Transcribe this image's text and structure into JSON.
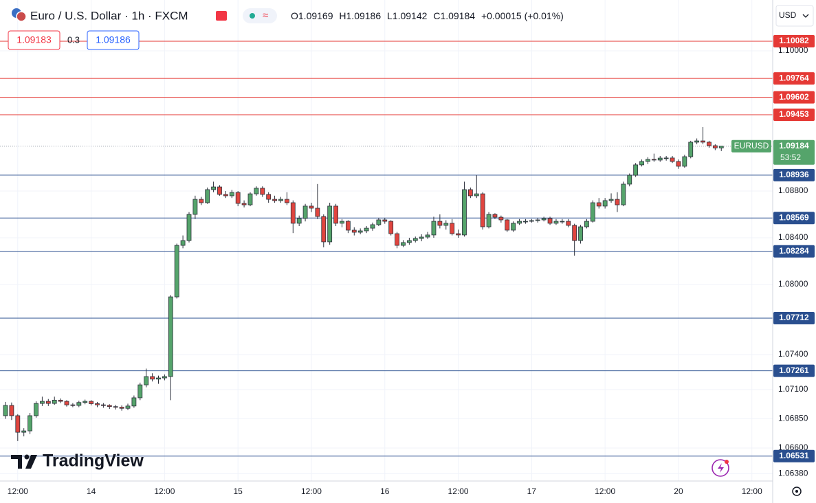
{
  "header": {
    "symbol": "Euro / U.S. Dollar · 1h · FXCM",
    "ohlc_labels": [
      "O",
      "H",
      "L",
      "C"
    ],
    "change": "+0.00015 (+0.01%)",
    "sell": 1.09183,
    "spread": 0.3,
    "buy": 1.09186,
    "currency": "USD",
    "brand": "TradingView"
  },
  "chart_data": {
    "type": "candlestick",
    "series_name": "EURUSD",
    "countdown": "53:52",
    "up_color": "#55a46b",
    "down_color": "#e0453f",
    "ylim": [
      1.06318,
      1.10435
    ],
    "xlim": [
      -0.9,
      125.4
    ],
    "grid": true,
    "yticks": [
      {
        "value": 1.1,
        "label": "1.10000"
      },
      {
        "value": 1.088,
        "label": "1.08800"
      },
      {
        "value": 1.084,
        "label": "1.08400"
      },
      {
        "value": 1.08,
        "label": "1.08000"
      },
      {
        "value": 1.074,
        "label": "1.07400"
      },
      {
        "value": 1.071,
        "label": "1.07100"
      },
      {
        "value": 1.0685,
        "label": "1.06850"
      },
      {
        "value": 1.066,
        "label": "1.06600"
      },
      {
        "value": 1.0638,
        "label": "1.06380"
      }
    ],
    "xticks": [
      {
        "value": 2,
        "label": "12:00"
      },
      14,
      {
        "value": 26,
        "label": "12:00"
      },
      {
        "value": 38,
        "label": "15"
      },
      {
        "value": 50,
        "label": "12:00"
      },
      {
        "value": 62,
        "label": "16"
      },
      {
        "value": 74,
        "label": "12:00"
      },
      {
        "value": 86,
        "label": "17"
      },
      {
        "value": 98,
        "label": "12:00"
      },
      {
        "value": 110,
        "label": "20"
      },
      {
        "value": 122,
        "label": "12:00"
      }
    ],
    "levels": [
      {
        "value": 1.10082,
        "color": "#e53935"
      },
      {
        "value": 1.09764,
        "color": "#e53935"
      },
      {
        "value": 1.09602,
        "color": "#e53935"
      },
      {
        "value": 1.09453,
        "color": "#e53935"
      },
      {
        "value": 1.08936,
        "color": "#2a4f8f"
      },
      {
        "value": 1.08569,
        "color": "#2a4f8f"
      },
      {
        "value": 1.08284,
        "color": "#2a4f8f"
      },
      {
        "value": 1.07712,
        "color": "#2a4f8f"
      },
      {
        "value": 1.07261,
        "color": "#2a4f8f"
      },
      {
        "value": 1.06531,
        "color": "#2a4f8f"
      }
    ],
    "ohlc": [
      [
        1.06877,
        1.06995,
        1.0685,
        1.06965
      ],
      [
        1.06965,
        1.0699,
        1.0684,
        1.06877
      ],
      [
        1.06877,
        1.0689,
        1.0666,
        1.06735
      ],
      [
        1.06735,
        1.0677,
        1.067,
        1.06747
      ],
      [
        1.06747,
        1.069,
        1.0672,
        1.06877
      ],
      [
        1.06877,
        1.07,
        1.0686,
        1.06982
      ],
      [
        1.06982,
        1.0704,
        1.0696,
        1.07
      ],
      [
        1.07,
        1.0702,
        1.0696,
        1.06982
      ],
      [
        1.06982,
        1.0704,
        1.0697,
        1.0701
      ],
      [
        1.0701,
        1.07025,
        1.06985,
        1.07
      ],
      [
        1.07,
        1.0701,
        1.06955,
        1.0697
      ],
      [
        1.0697,
        1.06985,
        1.0695,
        1.06965
      ],
      [
        1.06965,
        1.07005,
        1.0695,
        1.0699
      ],
      [
        1.0699,
        1.07015,
        1.06975,
        1.07
      ],
      [
        1.07,
        1.0701,
        1.06965,
        1.0698
      ],
      [
        1.0698,
        1.06995,
        1.0695,
        1.0697
      ],
      [
        1.0697,
        1.06985,
        1.06945,
        1.06965
      ],
      [
        1.06965,
        1.06975,
        1.06935,
        1.06955
      ],
      [
        1.06955,
        1.0697,
        1.0693,
        1.0695
      ],
      [
        1.0695,
        1.06965,
        1.0692,
        1.0694
      ],
      [
        1.0694,
        1.0698,
        1.06925,
        1.0696
      ],
      [
        1.0696,
        1.0705,
        1.06945,
        1.0703
      ],
      [
        1.0703,
        1.0716,
        1.0701,
        1.07141
      ],
      [
        1.07141,
        1.0728,
        1.0712,
        1.07212
      ],
      [
        1.07212,
        1.0724,
        1.0717,
        1.0719
      ],
      [
        1.0719,
        1.0722,
        1.0715,
        1.072
      ],
      [
        1.072,
        1.0723,
        1.0718,
        1.07212
      ],
      [
        1.07212,
        1.0791,
        1.0701,
        1.07894
      ],
      [
        1.07894,
        1.0835,
        1.0788,
        1.08335
      ],
      [
        1.08335,
        1.0842,
        1.0831,
        1.08376
      ],
      [
        1.08376,
        1.0862,
        1.0836,
        1.086
      ],
      [
        1.086,
        1.0876,
        1.0856,
        1.08729
      ],
      [
        1.08729,
        1.0875,
        1.0868,
        1.087
      ],
      [
        1.087,
        1.0883,
        1.0869,
        1.08812
      ],
      [
        1.08812,
        1.0888,
        1.0879,
        1.08835
      ],
      [
        1.08835,
        1.0885,
        1.0876,
        1.08771
      ],
      [
        1.08771,
        1.088,
        1.0874,
        1.08759
      ],
      [
        1.08759,
        1.0881,
        1.0874,
        1.08788
      ],
      [
        1.08788,
        1.088,
        1.0867,
        1.08694
      ],
      [
        1.08694,
        1.0872,
        1.0866,
        1.08682
      ],
      [
        1.08682,
        1.0879,
        1.0867,
        1.08776
      ],
      [
        1.08776,
        1.0884,
        1.0876,
        1.08824
      ],
      [
        1.08824,
        1.0884,
        1.0875,
        1.08771
      ],
      [
        1.08771,
        1.0879,
        1.087,
        1.08729
      ],
      [
        1.08729,
        1.0876,
        1.087,
        1.08718
      ],
      [
        1.08718,
        1.0875,
        1.087,
        1.08729
      ],
      [
        1.08729,
        1.0879,
        1.0868,
        1.087
      ],
      [
        1.087,
        1.0872,
        1.0844,
        1.08524
      ],
      [
        1.08524,
        1.0859,
        1.085,
        1.08565
      ],
      [
        1.08565,
        1.0869,
        1.0854,
        1.08671
      ],
      [
        1.08671,
        1.087,
        1.0862,
        1.08653
      ],
      [
        1.08653,
        1.0886,
        1.0856,
        1.08582
      ],
      [
        1.08582,
        1.086,
        1.08318,
        1.08365
      ],
      [
        1.08365,
        1.087,
        1.0834,
        1.08671
      ],
      [
        1.08671,
        1.0869,
        1.085,
        1.08524
      ],
      [
        1.08524,
        1.0856,
        1.0849,
        1.08541
      ],
      [
        1.08541,
        1.0855,
        1.0844,
        1.08465
      ],
      [
        1.08465,
        1.0849,
        1.0842,
        1.08447
      ],
      [
        1.08447,
        1.0848,
        1.0843,
        1.08459
      ],
      [
        1.08459,
        1.085,
        1.0844,
        1.08482
      ],
      [
        1.08482,
        1.0853,
        1.0846,
        1.08512
      ],
      [
        1.08512,
        1.0857,
        1.085,
        1.08553
      ],
      [
        1.08553,
        1.0857,
        1.0852,
        1.08541
      ],
      [
        1.08541,
        1.0855,
        1.0842,
        1.08435
      ],
      [
        1.08435,
        1.0845,
        1.0831,
        1.08335
      ],
      [
        1.08335,
        1.0838,
        1.0832,
        1.08359
      ],
      [
        1.08359,
        1.084,
        1.0834,
        1.08376
      ],
      [
        1.08376,
        1.0841,
        1.0836,
        1.08394
      ],
      [
        1.08394,
        1.0843,
        1.0837,
        1.08406
      ],
      [
        1.08406,
        1.0845,
        1.0839,
        1.08424
      ],
      [
        1.08424,
        1.0858,
        1.084,
        1.08541
      ],
      [
        1.08541,
        1.086,
        1.0848,
        1.08506
      ],
      [
        1.08506,
        1.0855,
        1.0847,
        1.08524
      ],
      [
        1.08524,
        1.0856,
        1.0842,
        1.08435
      ],
      [
        1.08435,
        1.0847,
        1.084,
        1.08424
      ],
      [
        1.08424,
        1.0888,
        1.0841,
        1.08812
      ],
      [
        1.08812,
        1.0883,
        1.0874,
        1.08759
      ],
      [
        1.08759,
        1.08935,
        1.0874,
        1.08776
      ],
      [
        1.08776,
        1.0879,
        1.0847,
        1.08494
      ],
      [
        1.08494,
        1.0862,
        1.0848,
        1.086
      ],
      [
        1.086,
        1.0861,
        1.0856,
        1.08576
      ],
      [
        1.08576,
        1.0859,
        1.0853,
        1.08553
      ],
      [
        1.08553,
        1.0856,
        1.0845,
        1.08465
      ],
      [
        1.08465,
        1.0854,
        1.0845,
        1.08524
      ],
      [
        1.08524,
        1.0856,
        1.0851,
        1.08541
      ],
      [
        1.08541,
        1.0856,
        1.0852,
        1.08541
      ],
      [
        1.08541,
        1.0856,
        1.0853,
        1.08547
      ],
      [
        1.08547,
        1.0857,
        1.0853,
        1.08553
      ],
      [
        1.08553,
        1.0858,
        1.0854,
        1.08565
      ],
      [
        1.08565,
        1.0858,
        1.0851,
        1.08524
      ],
      [
        1.08524,
        1.0856,
        1.0851,
        1.08541
      ],
      [
        1.08541,
        1.0856,
        1.0852,
        1.08541
      ],
      [
        1.08541,
        1.0856,
        1.0849,
        1.08506
      ],
      [
        1.08506,
        1.0852,
        1.08247,
        1.08376
      ],
      [
        1.08376,
        1.0851,
        1.0835,
        1.08494
      ],
      [
        1.08494,
        1.0856,
        1.0848,
        1.08541
      ],
      [
        1.08541,
        1.0872,
        1.0853,
        1.087
      ],
      [
        1.087,
        1.0874,
        1.0865,
        1.08671
      ],
      [
        1.08671,
        1.0874,
        1.0865,
        1.08718
      ],
      [
        1.08718,
        1.0878,
        1.087,
        1.08729
      ],
      [
        1.08729,
        1.0879,
        1.0862,
        1.08682
      ],
      [
        1.08682,
        1.0888,
        1.0867,
        1.08859
      ],
      [
        1.08859,
        1.0895,
        1.0884,
        1.08935
      ],
      [
        1.08935,
        1.0904,
        1.0892,
        1.09024
      ],
      [
        1.09024,
        1.0907,
        1.0901,
        1.09053
      ],
      [
        1.09053,
        1.0909,
        1.0903,
        1.09071
      ],
      [
        1.09071,
        1.0912,
        1.0905,
        1.09065
      ],
      [
        1.09065,
        1.091,
        1.0905,
        1.09082
      ],
      [
        1.09082,
        1.091,
        1.0906,
        1.09083
      ],
      [
        1.09083,
        1.091,
        1.0904,
        1.09053
      ],
      [
        1.09053,
        1.0907,
        1.0899,
        1.09012
      ],
      [
        1.09012,
        1.0911,
        1.09,
        1.09094
      ],
      [
        1.09094,
        1.0923,
        1.0908,
        1.09218
      ],
      [
        1.09218,
        1.0925,
        1.092,
        1.09229
      ],
      [
        1.09229,
        1.09347,
        1.092,
        1.09218
      ],
      [
        1.09218,
        1.0923,
        1.0917,
        1.09188
      ],
      [
        1.09188,
        1.092,
        1.0915,
        1.09169
      ],
      [
        1.09169,
        1.09186,
        1.09142,
        1.09184
      ]
    ]
  }
}
